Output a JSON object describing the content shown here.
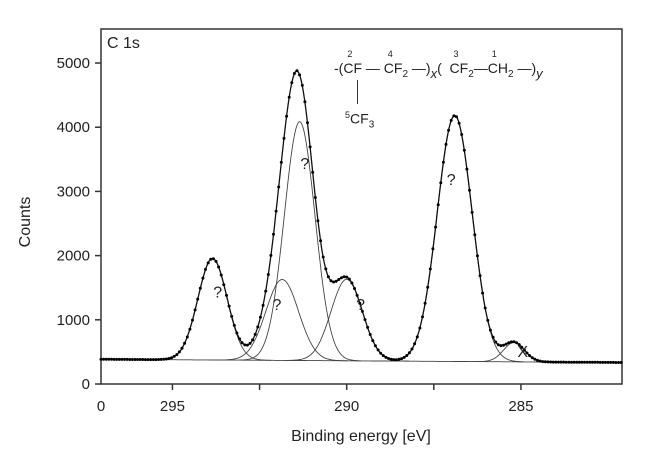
{
  "chart_data": {
    "type": "line",
    "panel_label": "C  1s",
    "xlabel": "Binding energy [eV]",
    "ylabel": "Counts",
    "xlim": [
      297.05,
      282.1
    ],
    "ylim": [
      0,
      5530
    ],
    "x_reversed": true,
    "x_ticks": [
      295,
      292.5,
      290,
      287.5,
      285
    ],
    "x_tick_labels": [
      {
        "value": 295,
        "label": "295"
      },
      {
        "value": 290,
        "label": "290"
      },
      {
        "value": 285,
        "label": "285"
      }
    ],
    "x_extra_label": "0",
    "y_ticks": [
      0,
      1000,
      2000,
      3000,
      4000,
      5000
    ],
    "y_tick_labels": [
      "0",
      "1000",
      "2000",
      "3000",
      "4000",
      "5000"
    ],
    "grid": false,
    "baseline": {
      "start": [
        297.05,
        385
      ],
      "end": [
        282.1,
        335
      ]
    },
    "components": [
      {
        "center": 293.85,
        "amplitude": 1580,
        "sigma": 0.42
      },
      {
        "center": 291.85,
        "amplitude": 1260,
        "sigma": 0.47
      },
      {
        "center": 291.35,
        "amplitude": 3720,
        "sigma": 0.44
      },
      {
        "center": 290.0,
        "amplitude": 1270,
        "sigma": 0.45
      },
      {
        "center": 286.9,
        "amplitude": 3830,
        "sigma": 0.5
      },
      {
        "center": 285.2,
        "amplitude": 300,
        "sigma": 0.3
      }
    ],
    "series": [
      {
        "name": "measured",
        "style": "dots",
        "x_range": [
          297.05,
          282.1
        ],
        "step": 0.075
      },
      {
        "name": "fit envelope",
        "style": "line"
      }
    ],
    "annotations": [
      {
        "text": "?",
        "x": 293.7,
        "y": 1350
      },
      {
        "text": "?",
        "x": 291.2,
        "y": 3350
      },
      {
        "text": "?",
        "x": 292.0,
        "y": 1150
      },
      {
        "text": "?",
        "x": 289.6,
        "y": 1150
      },
      {
        "text": "?",
        "x": 287.0,
        "y": 3100
      },
      {
        "text": "X",
        "x": 284.95,
        "y": 420
      }
    ],
    "formula": {
      "open1": "-(",
      "c2": "CF",
      "n2": "2",
      "dash1": " — ",
      "c4": "CF",
      "n4": "4",
      "sub4": "2",
      "close1": " —)",
      "x": "x",
      "open2": "(",
      "c3": "CF",
      "n3": "3",
      "sub3": "2",
      "dash2": "—",
      "c1": "CH",
      "n1": "1",
      "sub1": "2",
      "close2": " —)",
      "y": "y",
      "branch_n": "5",
      "branch": "CF",
      "branch_sub": "3"
    }
  }
}
